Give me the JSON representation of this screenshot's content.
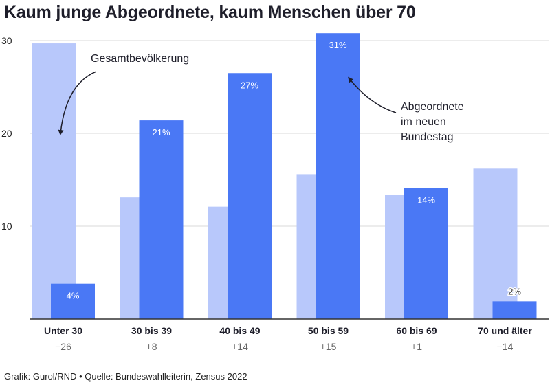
{
  "title": "Kaum junge Abgeordnete, kaum Menschen über 70",
  "footer": "Grafik: Gurol/RND • Quelle: Bundeswahlleiterin, Zensus 2022",
  "colors": {
    "population": "#b8c8fb",
    "parliament": "#4a78f5",
    "grid": "#d9d9d9",
    "axis": "#333333",
    "delta": "#666666"
  },
  "chart_data": {
    "type": "bar",
    "categories": [
      "Unter 30",
      "30 bis 39",
      "40 bis 49",
      "50 bis 59",
      "60 bis 69",
      "70 und älter"
    ],
    "deltas": [
      "−26",
      "+8",
      "+14",
      "+15",
      "+1",
      "−14"
    ],
    "series": [
      {
        "name": "Gesamtbevölkerung",
        "values": [
          29.7,
          13.1,
          12.1,
          15.6,
          13.4,
          16.2
        ]
      },
      {
        "name": "Abgeordnete im neuen Bundestag",
        "values": [
          3.8,
          21.4,
          26.5,
          30.8,
          14.1,
          1.9
        ],
        "labels": [
          "4%",
          "21%",
          "27%",
          "31%",
          "14%",
          "2%"
        ]
      }
    ],
    "yticks": [
      10,
      20,
      30
    ],
    "ylim": [
      0,
      31
    ],
    "grid": true,
    "annotations": {
      "population": "Gesamtbevölkerung",
      "parliament": [
        "Abgeordnete",
        "im neuen",
        "Bundestag"
      ]
    }
  }
}
